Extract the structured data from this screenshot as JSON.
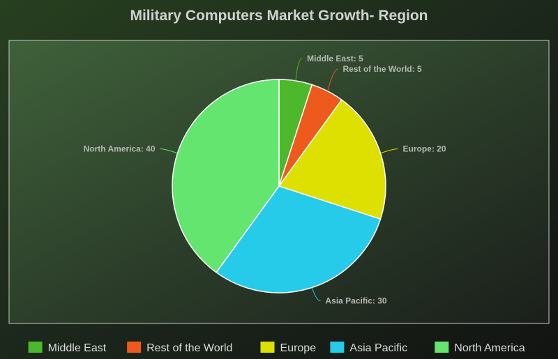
{
  "chart_data": {
    "type": "pie",
    "title": "Military Computers Market Growth- Region",
    "slices": [
      {
        "label": "Middle East",
        "value": 5,
        "color": "#4cb92d"
      },
      {
        "label": "Rest of the World",
        "value": 5,
        "color": "#ee5a1d"
      },
      {
        "label": "Europe",
        "value": 20,
        "color": "#dde000"
      },
      {
        "label": "Asia Pacific",
        "value": 30,
        "color": "#25cbe8"
      },
      {
        "label": "North America",
        "value": 40,
        "color": "#64e570"
      }
    ],
    "data_labels": [
      "Middle East: 5",
      "Rest of the World: 5",
      "Europe: 20",
      "Asia Pacific: 30",
      "North America: 40"
    ],
    "legend": {
      "position": "bottom"
    },
    "start_angle": "12 o'clock",
    "direction": "clockwise"
  }
}
